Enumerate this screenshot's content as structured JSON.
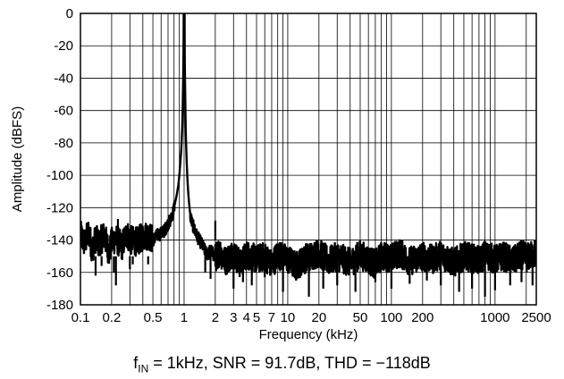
{
  "chart_data": {
    "type": "line",
    "title": "",
    "xlabel": "Frequency (kHz)",
    "ylabel": "Amplitude (dBFS)",
    "x_scale": "log",
    "xlim": [
      0.1,
      2500
    ],
    "ylim": [
      -180,
      0
    ],
    "grid": true,
    "legend": "none",
    "line_color": "#000000",
    "x_tick_labels": [
      "0.1",
      "0.2",
      "0.5",
      "1",
      "2",
      "3",
      "4",
      "5",
      "7",
      "10",
      "20",
      "50",
      "100",
      "200",
      "1000",
      "2500"
    ],
    "y_tick_labels": [
      "0",
      "-20",
      "-40",
      "-60",
      "-80",
      "-100",
      "-120",
      "-140",
      "-160",
      "-180"
    ],
    "caption": {
      "prefix": "f",
      "subscript": "IN",
      "rest": " = 1kHz, SNR = 91.7dB, THD = −118dB"
    },
    "series": [
      {
        "x": [
          0.1,
          0.11,
          0.12,
          0.13,
          0.14,
          0.15,
          0.17,
          0.19,
          0.2,
          0.22,
          0.25,
          0.28,
          0.3,
          0.35,
          0.4,
          0.45,
          0.5,
          0.55,
          0.6,
          0.65,
          0.7,
          0.75,
          0.8,
          0.85,
          0.88,
          0.9,
          0.92,
          0.94,
          0.96,
          0.97,
          0.98,
          0.99,
          1.0,
          1.01,
          1.02,
          1.03,
          1.04,
          1.06,
          1.08,
          1.1,
          1.12,
          1.15,
          1.2,
          1.3,
          1.4,
          1.5,
          1.6,
          1.7,
          1.8,
          2.0,
          2.2,
          2.5,
          3,
          3.5,
          4,
          5,
          6,
          7,
          8,
          10,
          12,
          15,
          20,
          25,
          30,
          40,
          50,
          60,
          70,
          80,
          100,
          120,
          150,
          200,
          250,
          300,
          400,
          500,
          600,
          700,
          800,
          1000,
          1200,
          1500,
          1800,
          2000,
          2200,
          2500
        ],
        "y": [
          -137,
          -142,
          -135,
          -146,
          -139,
          -142,
          -137,
          -148,
          -141,
          -139,
          -144,
          -136,
          -140,
          -141,
          -138,
          -137,
          -140,
          -137,
          -136,
          -134,
          -130,
          -127,
          -120,
          -112,
          -106,
          -100,
          -92,
          -84,
          -70,
          -58,
          -40,
          -15,
          0,
          -15,
          -40,
          -60,
          -76,
          -92,
          -104,
          -112,
          -118,
          -125,
          -130,
          -136,
          -140,
          -143,
          -147,
          -149,
          -146,
          -151,
          -147,
          -153,
          -148,
          -155,
          -149,
          -152,
          -150,
          -155,
          -149,
          -152,
          -156,
          -151,
          -148,
          -153,
          -150,
          -154,
          -149,
          -152,
          -155,
          -150,
          -151,
          -148,
          -153,
          -150,
          -152,
          -149,
          -154,
          -150,
          -151,
          -153,
          -149,
          -152,
          -150,
          -153,
          -149,
          -151,
          -150,
          -148
        ]
      }
    ],
    "spurs": [
      {
        "x": 0.14,
        "y": -162
      },
      {
        "x": 0.16,
        "y": -156
      },
      {
        "x": 0.21,
        "y": -160
      },
      {
        "x": 0.22,
        "y": -168
      },
      {
        "x": 0.23,
        "y": -127
      },
      {
        "x": 0.3,
        "y": -158
      },
      {
        "x": 0.32,
        "y": -155
      },
      {
        "x": 0.45,
        "y": -155
      },
      {
        "x": 1.6,
        "y": -160
      },
      {
        "x": 1.8,
        "y": -164
      },
      {
        "x": 2.0,
        "y": -128
      },
      {
        "x": 2.1,
        "y": -158
      },
      {
        "x": 3.0,
        "y": -170
      },
      {
        "x": 3.7,
        "y": -166
      },
      {
        "x": 4.5,
        "y": -168
      },
      {
        "x": 6.0,
        "y": -163
      },
      {
        "x": 9.0,
        "y": -172
      },
      {
        "x": 12,
        "y": -165
      },
      {
        "x": 16,
        "y": -175
      },
      {
        "x": 22,
        "y": -170
      },
      {
        "x": 30,
        "y": -168
      },
      {
        "x": 45,
        "y": -172
      },
      {
        "x": 70,
        "y": -166
      },
      {
        "x": 100,
        "y": -170
      },
      {
        "x": 150,
        "y": -167
      },
      {
        "x": 220,
        "y": -165
      },
      {
        "x": 300,
        "y": -168
      },
      {
        "x": 450,
        "y": -172
      },
      {
        "x": 600,
        "y": -170
      },
      {
        "x": 800,
        "y": -175
      },
      {
        "x": 1000,
        "y": -171
      },
      {
        "x": 1400,
        "y": -168
      },
      {
        "x": 1800,
        "y": -166
      },
      {
        "x": 2300,
        "y": -168
      }
    ]
  }
}
